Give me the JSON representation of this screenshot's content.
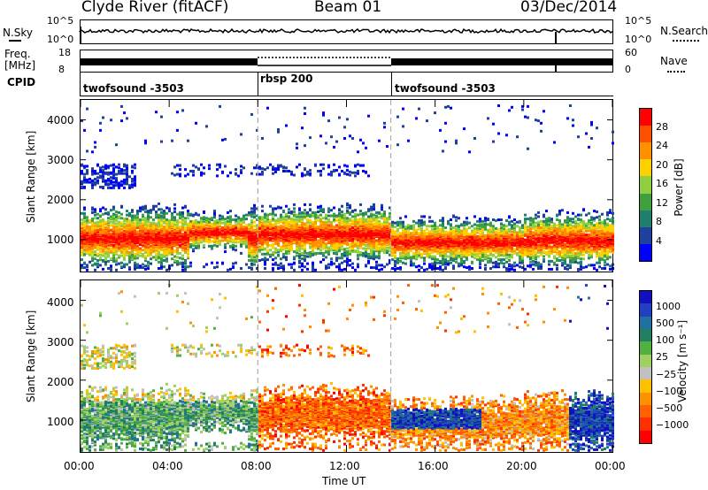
{
  "header": {
    "station": "Clyde River (fitACF)",
    "beam": "Beam 01",
    "date": "03/Dec/2014"
  },
  "top_panel": {
    "left_label": "N.Sky",
    "right_label": "N.Search",
    "ticks_left": [
      "10^5",
      "10^0"
    ],
    "ticks_right": [
      "10^5",
      "10^0"
    ]
  },
  "freq_panel": {
    "left_label_1": "Freq.",
    "left_label_2": "[MHz]",
    "right_label": "Nave",
    "ticks_left": [
      "18",
      "8"
    ],
    "ticks_right": [
      "60",
      "0"
    ]
  },
  "cpid": {
    "label": "CPID",
    "segments": [
      {
        "name": "twofsound -3503",
        "start_hour": 0,
        "end_hour": 8
      },
      {
        "name": "rbsp 200",
        "start_hour": 8,
        "end_hour": 14
      },
      {
        "name": "twofsound -3503",
        "start_hour": 14,
        "end_hour": 24
      }
    ]
  },
  "chart_data": [
    {
      "type": "heatmap",
      "ylabel": "Slant Range [km]",
      "x_range_hours": [
        0,
        24
      ],
      "ylim": [
        200,
        4500
      ],
      "yticks": [
        "1000",
        "2000",
        "3000",
        "4000"
      ],
      "colorbar": {
        "label": "Power [dB]",
        "ticks": [
          "28",
          "24",
          "20",
          "16",
          "12",
          "8",
          "4"
        ],
        "colors": [
          "#ff0000",
          "#ff5000",
          "#ff9000",
          "#ffd000",
          "#90d040",
          "#40a040",
          "#208070",
          "#2040a0",
          "#0000ff"
        ]
      }
    },
    {
      "type": "heatmap",
      "ylabel": "Slant Range [km]",
      "x_range_hours": [
        0,
        24
      ],
      "ylim": [
        200,
        4500
      ],
      "yticks": [
        "1000",
        "2000",
        "3000",
        "4000"
      ],
      "xticks": [
        "00:00",
        "04:00",
        "08:00",
        "12:00",
        "16:00",
        "20:00",
        "00:00"
      ],
      "xlabel": "Time UT",
      "colorbar": {
        "label": "Velocity [m s⁻¹]",
        "ticks": [
          "1000",
          "500",
          "100",
          "25",
          "−25",
          "−100",
          "−500",
          "−1000"
        ],
        "colors": [
          "#1010c0",
          "#2040c0",
          "#2070a0",
          "#208060",
          "#50b040",
          "#a0d060",
          "#c0c0c0",
          "#ffc000",
          "#ff9000",
          "#ff6000",
          "#ff3000",
          "#ff0000"
        ]
      }
    }
  ]
}
